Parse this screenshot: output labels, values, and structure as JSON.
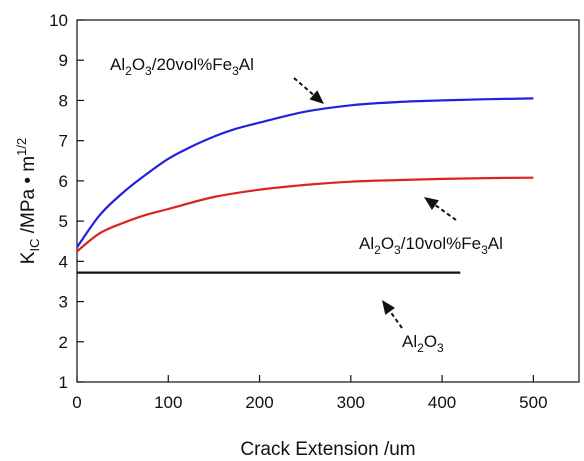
{
  "chart_data": {
    "type": "line",
    "xlabel": "Crack Extension /um",
    "ylabel_main": "K",
    "ylabel_sub": "IC",
    "ylabel_rest": " /MPa • m",
    "ylabel_sup": "1/2",
    "xlim": [
      0,
      550
    ],
    "ylim": [
      1,
      10
    ],
    "x_ticks": [
      0,
      100,
      200,
      300,
      400,
      500
    ],
    "y_ticks": [
      1,
      2,
      3,
      4,
      5,
      6,
      7,
      8,
      9,
      10
    ],
    "grid": false,
    "series": [
      {
        "name": "Al2O3/20vol%Fe3Al",
        "color": "#2222dd",
        "x": [
          0,
          25,
          50,
          75,
          100,
          125,
          150,
          175,
          200,
          250,
          300,
          350,
          400,
          450,
          500
        ],
        "y": [
          4.35,
          5.15,
          5.7,
          6.15,
          6.55,
          6.85,
          7.1,
          7.3,
          7.45,
          7.72,
          7.88,
          7.96,
          8.0,
          8.03,
          8.05
        ]
      },
      {
        "name": "Al2O3/10vol%Fe3Al",
        "color": "#dd2222",
        "x": [
          0,
          25,
          50,
          75,
          100,
          150,
          200,
          250,
          300,
          350,
          400,
          450,
          500
        ],
        "y": [
          4.25,
          4.7,
          4.95,
          5.15,
          5.3,
          5.6,
          5.78,
          5.9,
          5.98,
          6.02,
          6.05,
          6.07,
          6.08
        ]
      },
      {
        "name": "Al2O3",
        "color": "#111111",
        "x": [
          0,
          420
        ],
        "y": [
          3.72,
          3.72
        ]
      }
    ],
    "annotations": [
      {
        "series": 0,
        "label_parts": [
          [
            "Al",
            ""
          ],
          [
            "2",
            "sub"
          ],
          [
            "O",
            ""
          ],
          [
            "3",
            "sub"
          ],
          [
            "/20vol%Fe",
            ""
          ],
          [
            "3",
            "sub"
          ],
          [
            "Al",
            ""
          ]
        ]
      },
      {
        "series": 1,
        "label_parts": [
          [
            "Al",
            ""
          ],
          [
            "2",
            "sub"
          ],
          [
            "O",
            ""
          ],
          [
            "3",
            "sub"
          ],
          [
            "/10vol%Fe",
            ""
          ],
          [
            "3",
            "sub"
          ],
          [
            "Al",
            ""
          ]
        ]
      },
      {
        "series": 2,
        "label_parts": [
          [
            "Al",
            ""
          ],
          [
            "2",
            "sub"
          ],
          [
            "O",
            ""
          ],
          [
            "3",
            "sub"
          ]
        ]
      }
    ]
  }
}
